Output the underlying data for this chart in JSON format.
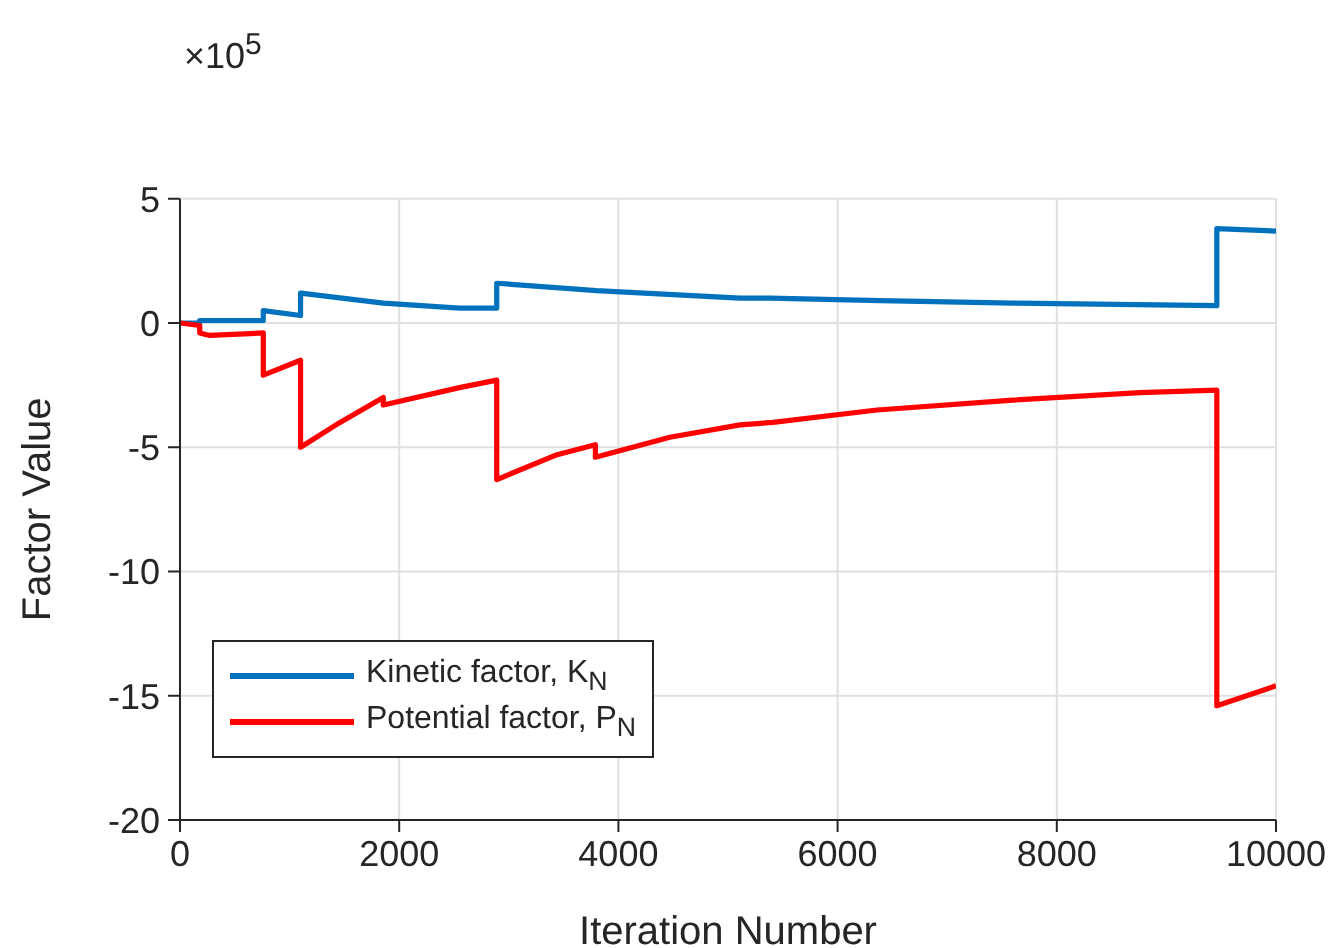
{
  "chart_data": {
    "type": "line",
    "xlabel": "Iteration Number",
    "ylabel": "Factor Value",
    "annotations": [
      "×10$^{5}$"
    ],
    "xlim": [
      0,
      10000
    ],
    "xticks": [
      0,
      2000,
      4000,
      6000,
      8000,
      10000
    ],
    "ylim": [
      -20,
      5
    ],
    "yticks": [
      -20,
      -15,
      -10,
      -5,
      0,
      5
    ],
    "grid": true,
    "legend": "bottom left",
    "marker": "none",
    "line_style": "solid",
    "series": [
      {
        "name": "Kinetic factor, K$_{N}$",
        "color": "#0072bd",
        "x": [
          0,
          180,
          180,
          760,
          760,
          1100,
          1100,
          1855,
          2550,
          2890,
          2890,
          3800,
          5110,
          5380,
          6390,
          7600,
          9460,
          9460,
          10000
        ],
        "values": [
          0,
          0,
          0.1,
          0.1,
          0.5,
          0.3,
          1.2,
          0.8,
          0.6,
          0.6,
          1.6,
          1.3,
          1.0,
          1.0,
          0.9,
          0.8,
          0.7,
          3.8,
          3.7
        ]
      },
      {
        "name": "Potential factor, P$_{N}$",
        "color": "#ff0000",
        "x": [
          0,
          180,
          180,
          270,
          760,
          760,
          1100,
          1100,
          1460,
          1855,
          1855,
          2550,
          2890,
          2890,
          3440,
          3790,
          3790,
          4470,
          5110,
          5410,
          6360,
          7600,
          8760,
          9460,
          9460,
          10000
        ],
        "values": [
          0,
          -0.1,
          -0.4,
          -0.5,
          -0.4,
          -2.1,
          -1.5,
          -5.0,
          -4.0,
          -3.0,
          -3.3,
          -2.6,
          -2.3,
          -6.3,
          -5.3,
          -4.9,
          -5.4,
          -4.6,
          -4.1,
          -4.0,
          -3.5,
          -3.1,
          -2.8,
          -2.7,
          -15.4,
          -14.6
        ]
      }
    ]
  }
}
